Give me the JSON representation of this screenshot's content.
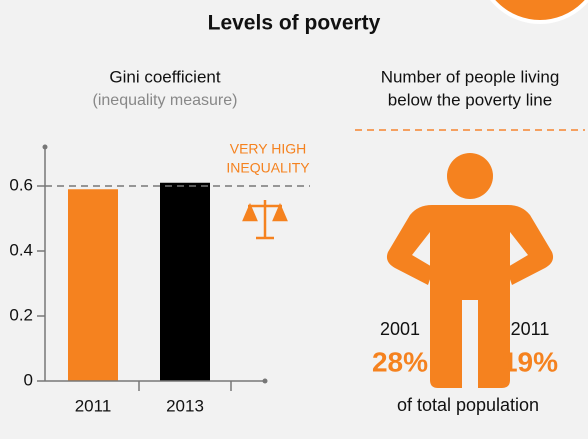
{
  "title": "Levels of poverty",
  "chart_data": {
    "type": "bar",
    "title": "Gini coefficient",
    "subtitle": "(inequality measure)",
    "categories": [
      "2011",
      "2013"
    ],
    "values": [
      0.59,
      0.61
    ],
    "colors": [
      "#f5821f",
      "#000000"
    ],
    "ylim": [
      0,
      0.72
    ],
    "yticks": [
      0,
      0.2,
      0.4,
      0.6
    ],
    "threshold": {
      "value": 0.6,
      "label": [
        "VERY HIGH",
        "INEQUALITY"
      ]
    }
  },
  "poverty": {
    "title": [
      "Number of people living",
      "below the poverty line"
    ],
    "stats": [
      {
        "year": "2001",
        "value": "28%"
      },
      {
        "year": "2011",
        "value": "19%"
      }
    ],
    "footer": "of total population"
  }
}
